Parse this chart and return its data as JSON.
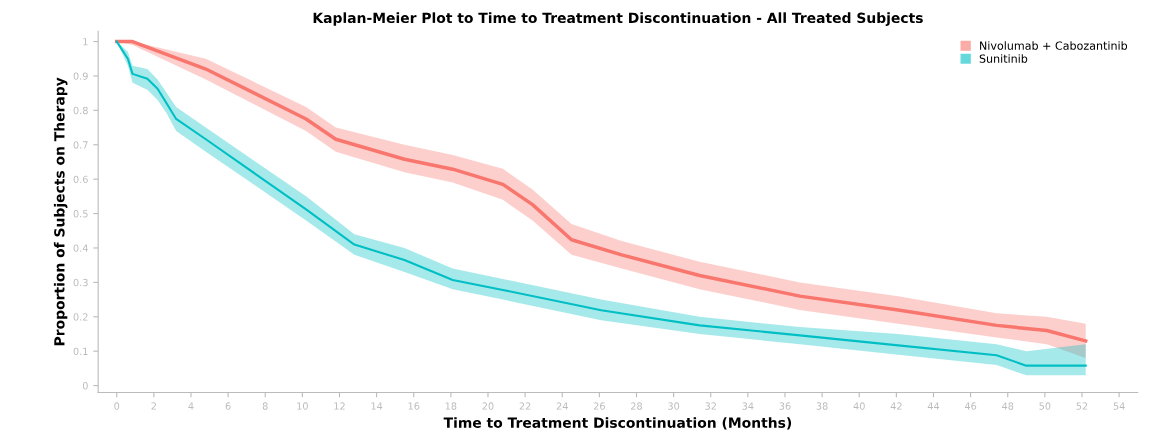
{
  "chart_data": {
    "type": "line",
    "title": "Kaplan-Meier Plot to Time to Treatment Discontinuation - All Treated Subjects",
    "xlabel": "Time to Treatment Discontinuation (Months)",
    "ylabel": "Proportion of Subjects on Therapy",
    "xlim": [
      -1,
      55
    ],
    "xticks": [
      0,
      2,
      4,
      6,
      8,
      10,
      12,
      14,
      16,
      18,
      20,
      22,
      24,
      26,
      28,
      30,
      32,
      34,
      36,
      38,
      40,
      42,
      44,
      46,
      48,
      50,
      52,
      54
    ],
    "ylim": [
      -0.02,
      1.03
    ],
    "yticks": [
      0,
      0.1,
      0.2,
      0.3,
      0.4,
      0.5,
      0.6,
      0.7,
      0.8,
      0.9,
      1
    ],
    "legend": "top right",
    "grid": false,
    "series": [
      {
        "name": "Nivolumab + Cabozantinib",
        "color": "#f8766d",
        "x": [
          0,
          0.85,
          4.8,
          10.2,
          11.8,
          15.5,
          18.1,
          20.8,
          22.4,
          24.5,
          27.2,
          31.4,
          36.8,
          42.1,
          47.4,
          50.1,
          52.2
        ],
        "values": [
          1.0,
          1.0,
          0.92,
          0.775,
          0.716,
          0.658,
          0.629,
          0.585,
          0.526,
          0.424,
          0.38,
          0.32,
          0.26,
          0.22,
          0.175,
          0.16,
          0.13
        ],
        "lower": [
          1.0,
          0.99,
          0.89,
          0.74,
          0.68,
          0.62,
          0.59,
          0.54,
          0.48,
          0.38,
          0.34,
          0.28,
          0.22,
          0.18,
          0.14,
          0.12,
          0.08
        ],
        "upper": [
          1.0,
          1.0,
          0.95,
          0.81,
          0.75,
          0.7,
          0.67,
          0.63,
          0.57,
          0.47,
          0.42,
          0.36,
          0.3,
          0.26,
          0.21,
          0.2,
          0.18
        ]
      },
      {
        "name": "Sunitinib",
        "color": "#00bfc4",
        "x": [
          0,
          0.6,
          0.85,
          1.65,
          2.2,
          2.7,
          3.2,
          4.8,
          7.5,
          10.2,
          12.8,
          15.5,
          18.1,
          20.8,
          26.1,
          31.4,
          36.8,
          42.1,
          47.4,
          49,
          52.2
        ],
        "values": [
          1.0,
          0.95,
          0.906,
          0.892,
          0.863,
          0.819,
          0.775,
          0.716,
          0.614,
          0.512,
          0.41,
          0.365,
          0.307,
          0.278,
          0.219,
          0.175,
          0.146,
          0.117,
          0.088,
          0.058,
          0.058
        ],
        "lower": [
          1.0,
          0.93,
          0.88,
          0.86,
          0.83,
          0.79,
          0.74,
          0.68,
          0.58,
          0.48,
          0.38,
          0.33,
          0.28,
          0.25,
          0.19,
          0.15,
          0.12,
          0.09,
          0.06,
          0.03,
          0.03
        ],
        "upper": [
          1.0,
          0.97,
          0.93,
          0.92,
          0.89,
          0.85,
          0.81,
          0.75,
          0.65,
          0.55,
          0.44,
          0.4,
          0.34,
          0.31,
          0.25,
          0.2,
          0.17,
          0.15,
          0.12,
          0.1,
          0.12
        ]
      }
    ]
  }
}
